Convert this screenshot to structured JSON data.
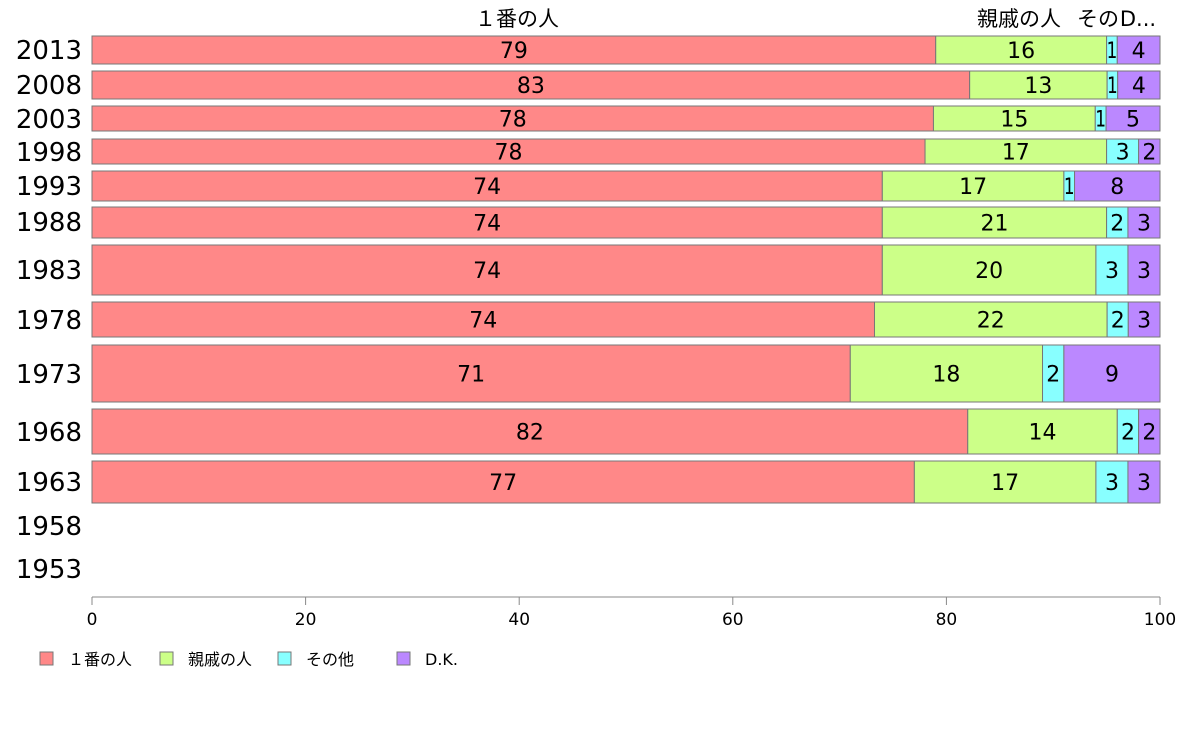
{
  "chart_data": {
    "type": "bar",
    "orientation": "horizontal",
    "stacked": true,
    "categories": [
      "2013",
      "2008",
      "2003",
      "1998",
      "1993",
      "1988",
      "1983",
      "1978",
      "1973",
      "1968",
      "1963",
      "1958",
      "1953"
    ],
    "series": [
      {
        "name": "１番の人",
        "color": "#ff8888",
        "values": [
          79,
          83,
          78,
          78,
          74,
          74,
          74,
          74,
          71,
          82,
          77,
          null,
          null
        ]
      },
      {
        "name": "親戚の人",
        "color": "#ccff88",
        "values": [
          16,
          13,
          15,
          17,
          17,
          21,
          20,
          22,
          18,
          14,
          17,
          null,
          null
        ]
      },
      {
        "name": "その他",
        "color": "#88ffff",
        "values": [
          1,
          1,
          1,
          3,
          1,
          2,
          3,
          2,
          2,
          2,
          3,
          null,
          null
        ]
      },
      {
        "name": "D.K.",
        "color": "#bb88ff",
        "values": [
          4,
          4,
          5,
          2,
          8,
          3,
          3,
          3,
          9,
          2,
          3,
          null,
          null
        ]
      }
    ],
    "column_headers": [
      "１番の人",
      "親戚の人",
      "その",
      "D..."
    ],
    "xlim": [
      0,
      100
    ],
    "xticks": [
      "0",
      "20",
      "40",
      "60",
      "80",
      "100"
    ],
    "grid": false,
    "legend_position": "bottom-left"
  }
}
